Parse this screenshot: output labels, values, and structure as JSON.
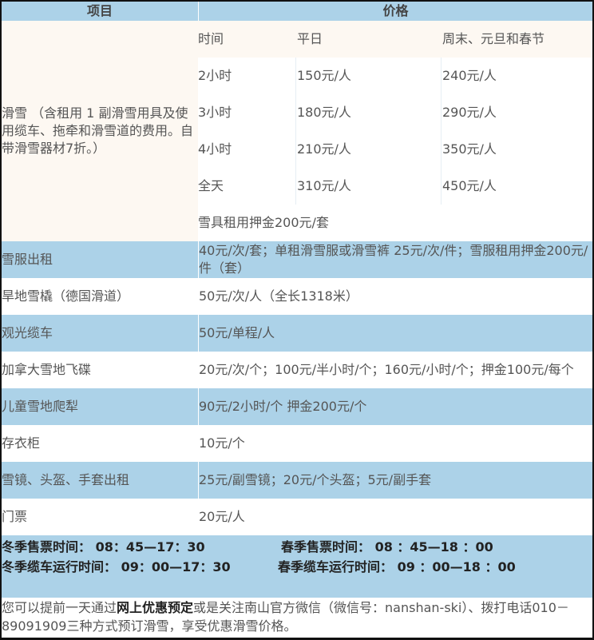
{
  "header": {
    "item": "项目",
    "price": "价格"
  },
  "ski": {
    "label": "滑雪 （含租用 1 副滑雪用具及使用缆车、拖牵和滑雪道的费用。自带滑雪器材7折。）",
    "columns": [
      "时间",
      "平日",
      "周末、元旦和春节"
    ],
    "rows": [
      [
        "2小时",
        "150元/人",
        "240元/人"
      ],
      [
        "3小时",
        "180元/人",
        "290元/人"
      ],
      [
        "4小时",
        "210元/人",
        "350元/人"
      ],
      [
        "全天",
        "310元/人",
        "450元/人"
      ]
    ],
    "deposit": "雪具租用押金200元/套"
  },
  "items": [
    {
      "name": "雪服出租",
      "price": "40元/次/套；单租滑雪服或滑雪裤 25元/次/件；雪服租用押金200元/件（套）"
    },
    {
      "name": "旱地雪橇（德国滑道）",
      "price": "50元/次/人（全长1318米）"
    },
    {
      "name": "观光缆车",
      "price": "50元/单程/人"
    },
    {
      "name": "加拿大雪地飞碟",
      "price": "20元/次/个；100元/半小时/个；160元/小时/个；押金100元/每个"
    },
    {
      "name": "儿童雪地爬犁",
      "price": "90元/2小时/个  押金200元/个"
    },
    {
      "name": "存衣柜",
      "price": "10元/个"
    },
    {
      "name": "雪镜、头盔、手套出租",
      "price": "25元/副雪镜；20元/个头盔；5元/副手套"
    },
    {
      "name": "门票",
      "price": "20元/人"
    }
  ],
  "hours": {
    "winter_ticket": "冬季售票时间： 08：45—17：30",
    "spring_ticket": "春季售票时间： 08 ：45—18 ：00",
    "winter_cable": "冬季缆车运行时间： 09：00—17：30",
    "spring_cable": "春季缆车运行时间： 09 ：00—18 ：00"
  },
  "footer": {
    "part1": "您可以提前一天通过",
    "bold": "网上优惠预定",
    "part2": "或是关注南山官方微信（微信号：nanshan-ski）、拨打电话010－89091909三种方式预订滑雪，享受优惠滑雪价格。"
  },
  "colors": {
    "blue": "#acd2e8",
    "cream": "#fdf8f2"
  }
}
